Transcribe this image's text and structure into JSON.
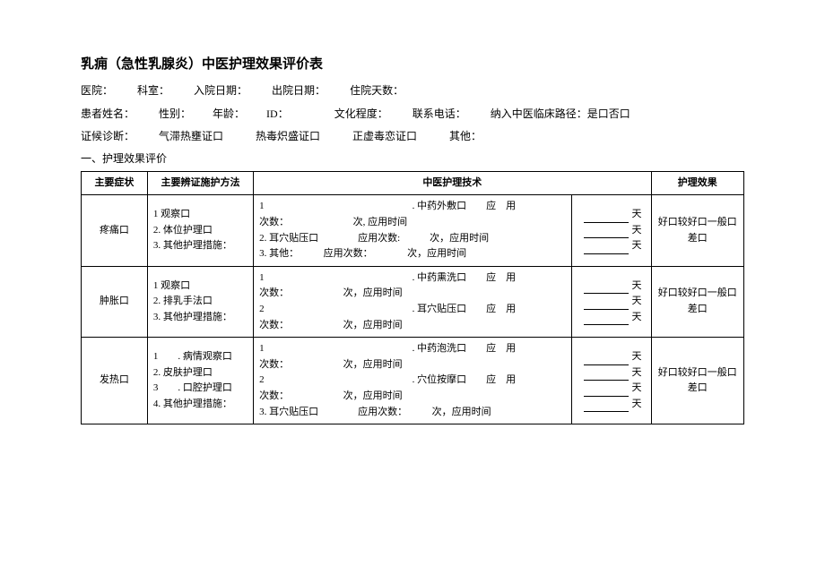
{
  "title": "乳痈（急性乳腺炎）中医护理效果评价表",
  "meta": {
    "hospital_lbl": "医院：",
    "dept_lbl": "科室：",
    "admit_lbl": "入院日期：",
    "discharge_lbl": "出院日期：",
    "stay_lbl": "住院天数：",
    "name_lbl": "患者姓名：",
    "gender_lbl": "性别：",
    "age_lbl": "年龄：",
    "id_lbl": "ID：",
    "edu_lbl": "文化程度：",
    "phone_lbl": "联系电话：",
    "path_lbl": "纳入中医临床路径：是口否口",
    "diag_lbl": "证候诊断：",
    "diag_opts": "气滞热壅证口　　　热毒炽盛证口　　　正虚毒恋证口　　　其他："
  },
  "section1": "一、护理效果评价",
  "headers": {
    "symptom": "主要症状",
    "method": "主要辨证施护方法",
    "tech": "中医护理技术",
    "effect": "护理效果"
  },
  "day_unit": "天",
  "effect_opts": "好口较好口一般口差口",
  "rows": [
    {
      "symptom": "疼痛口",
      "methods": "1 观察口\n2. 体位护理口\n3. 其他护理措施：",
      "tech": "1　　　　　　　　　　　　　　　. 中药外敷口　　应　用\n次数：　　　　　　　次, 应用时间\n2. 耳穴贴压口　　　　应用次数:　　　次，应用时间\n3. 其他：　　　应用次数：　　　　次，应用时间",
      "day_count": 3
    },
    {
      "symptom": "肿胀口",
      "methods": "1 观察口\n2. 排乳手法口\n3. 其他护理措施：",
      "tech": "1　　　　　　　　　　　　　　　. 中药熏洗口　　应　用\n次数：　　　　　　次，应用时间\n2　　　　　　　　　　　　　　　. 耳穴贴压口　　应　用\n次数：　　　　　　次，应用时间",
      "day_count": 3
    },
    {
      "symptom": "发热口",
      "methods": "1　　. 病情观察口\n2. 皮肤护理口\n3　　. 口腔护理口\n4. 其他护理措施：",
      "tech": "1　　　　　　　　　　　　　　　. 中药泡洗口　　应　用\n次数：　　　　　　次，应用时间\n2　　　　　　　　　　　　　　　. 穴位按摩口　　应　用\n次数：　　　　　　次，应用时间\n3. 耳穴贴压口　　　　应用次数：　　　次，应用时间",
      "day_count": 4
    }
  ]
}
